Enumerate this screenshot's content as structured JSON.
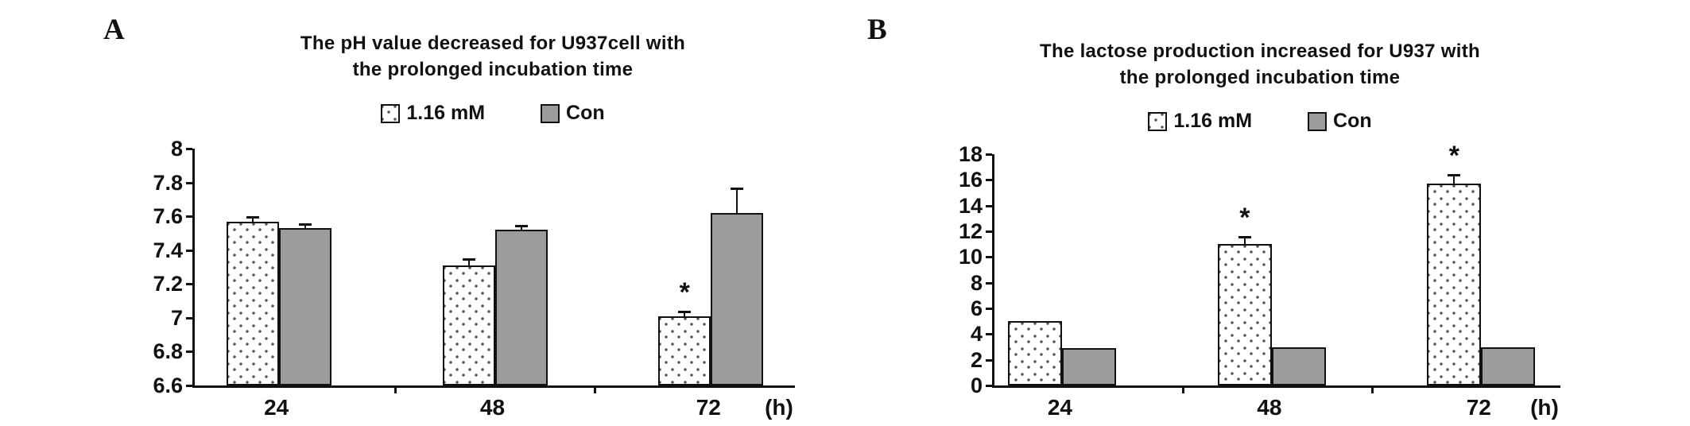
{
  "page": {
    "background": "#ffffff"
  },
  "chart_data": [
    {
      "type": "bar",
      "panel_label": "A",
      "title_line1": "The pH value decreased for U937cell with",
      "title_line2": "the prolonged incubation time",
      "categories": [
        "24",
        "48",
        "72"
      ],
      "x_unit": "(h)",
      "xlabel": "",
      "ylabel": "",
      "ylim": [
        6.6,
        8
      ],
      "ytick_values": [
        6.6,
        6.8,
        7.0,
        7.2,
        7.4,
        7.6,
        7.8,
        8.0
      ],
      "ytick_labels": [
        "6.6",
        "6.8",
        "7",
        "7.2",
        "7.4",
        "7.6",
        "7.8",
        "8"
      ],
      "grid": false,
      "legend_position": "top",
      "series": [
        {
          "name": "1.16 mM",
          "style": "dotted",
          "values": [
            7.57,
            7.31,
            7.01
          ],
          "errors": [
            0.02,
            0.03,
            0.02
          ],
          "stars": [
            false,
            false,
            true
          ]
        },
        {
          "name": "Con",
          "style": "gray",
          "values": [
            7.53,
            7.52,
            7.62
          ],
          "errors": [
            0.02,
            0.02,
            0.14
          ],
          "stars": [
            false,
            false,
            false
          ]
        }
      ],
      "colors": {
        "dotted_fill": "#ffffff",
        "dot_color": "#555555",
        "gray_fill": "#9c9c9c",
        "axis": "#111111",
        "text": "#111111"
      }
    },
    {
      "type": "bar",
      "panel_label": "B",
      "title_line1": "The lactose production increased for U937 with",
      "title_line2": "the prolonged incubation time",
      "categories": [
        "24",
        "48",
        "72"
      ],
      "x_unit": "(h)",
      "xlabel": "",
      "ylabel": "",
      "ylim": [
        0,
        18
      ],
      "ytick_values": [
        0,
        2,
        4,
        6,
        8,
        10,
        12,
        14,
        16,
        18
      ],
      "ytick_labels": [
        "0",
        "2",
        "4",
        "6",
        "8",
        "10",
        "12",
        "14",
        "16",
        "18"
      ],
      "grid": false,
      "legend_position": "top",
      "series": [
        {
          "name": "1.16 mM",
          "style": "dotted",
          "values": [
            5.0,
            11.0,
            15.7
          ],
          "errors": [
            0,
            0.5,
            0.6
          ],
          "stars": [
            false,
            true,
            true
          ]
        },
        {
          "name": "Con",
          "style": "gray",
          "values": [
            2.9,
            3.0,
            3.0
          ],
          "errors": [
            0,
            0,
            0
          ],
          "stars": [
            false,
            false,
            false
          ]
        }
      ],
      "colors": {
        "dotted_fill": "#ffffff",
        "dot_color": "#555555",
        "gray_fill": "#9c9c9c",
        "axis": "#111111",
        "text": "#111111"
      }
    }
  ]
}
